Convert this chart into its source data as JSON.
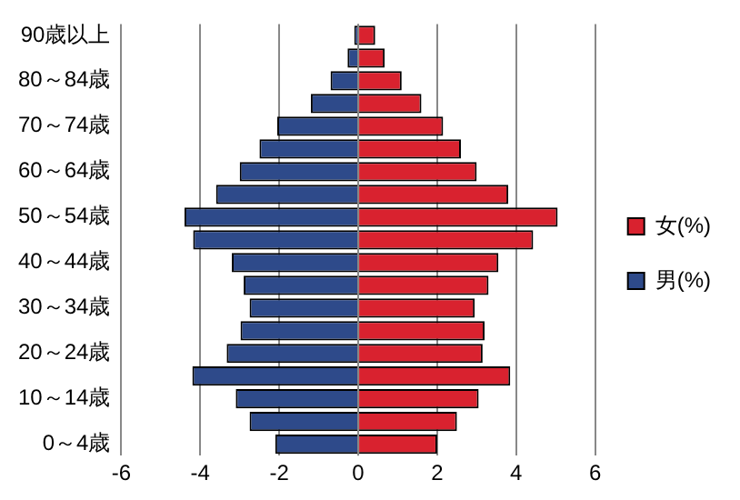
{
  "chart_data": {
    "type": "bar",
    "orientation": "horizontal",
    "stacked": true,
    "categories": [
      "90歳以上",
      null,
      "80～84歳",
      null,
      "70～74歳",
      null,
      "60～64歳",
      null,
      "50～54歳",
      null,
      "40～44歳",
      null,
      "30～34歳",
      null,
      "20～24歳",
      null,
      "10～14歳",
      null,
      "0～4歳"
    ],
    "series": [
      {
        "name": "女(%)",
        "color": "#d9222f",
        "values": [
          0.43,
          0.67,
          1.1,
          1.6,
          2.15,
          2.6,
          3.0,
          3.8,
          5.05,
          4.43,
          3.55,
          3.3,
          2.95,
          3.2,
          3.15,
          3.85,
          3.05,
          2.5,
          2.0
        ]
      },
      {
        "name": "男(%)",
        "color": "#2e4a8a",
        "values": [
          -0.1,
          -0.27,
          -0.7,
          -1.2,
          -2.05,
          -2.5,
          -3.0,
          -3.6,
          -4.4,
          -4.18,
          -3.2,
          -2.9,
          -2.75,
          -2.98,
          -3.33,
          -4.2,
          -3.1,
          -2.75,
          -2.1
        ]
      }
    ],
    "xlim": [
      -6,
      6
    ],
    "xticks": [
      -6,
      -4,
      -2,
      0,
      2,
      4,
      6
    ],
    "grid": "x",
    "legend": "right"
  }
}
